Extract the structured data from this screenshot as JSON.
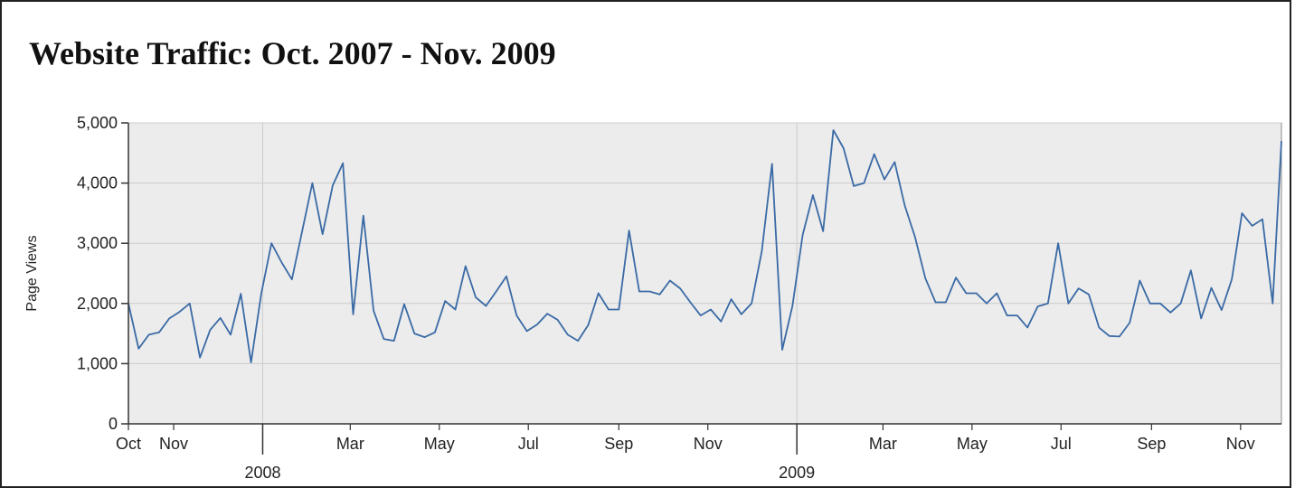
{
  "chart_data": {
    "type": "line",
    "title": "Website Traffic: Oct. 2007 - Nov. 2009",
    "ylabel": "Page Views",
    "xlabel": "",
    "ylim": [
      0,
      5000
    ],
    "yticks": [
      {
        "value": 0,
        "label": "0"
      },
      {
        "value": 1000,
        "label": "1,000"
      },
      {
        "value": 2000,
        "label": "2,000"
      },
      {
        "value": 3000,
        "label": "3,000"
      },
      {
        "value": 4000,
        "label": "4,000"
      },
      {
        "value": 5000,
        "label": "5,000"
      }
    ],
    "xlim": [
      "2007-10-01",
      "2009-11-29"
    ],
    "xticks": [
      {
        "date": "2007-10-01",
        "label": "Oct"
      },
      {
        "date": "2007-11-01",
        "label": "Nov"
      },
      {
        "date": "2008-03-01",
        "label": "Mar"
      },
      {
        "date": "2008-05-01",
        "label": "May"
      },
      {
        "date": "2008-07-01",
        "label": "Jul"
      },
      {
        "date": "2008-09-01",
        "label": "Sep"
      },
      {
        "date": "2008-11-01",
        "label": "Nov"
      },
      {
        "date": "2009-03-01",
        "label": "Mar"
      },
      {
        "date": "2009-05-01",
        "label": "May"
      },
      {
        "date": "2009-07-01",
        "label": "Jul"
      },
      {
        "date": "2009-09-01",
        "label": "Sep"
      },
      {
        "date": "2009-11-01",
        "label": "Nov"
      }
    ],
    "year_ticks": [
      {
        "date": "2008-01-01",
        "label": "2008"
      },
      {
        "date": "2009-01-01",
        "label": "2009"
      }
    ],
    "grid": true,
    "legend": "none",
    "colors": {
      "line": "#3a6aa5",
      "plot_bg": "#ececec",
      "grid": "#cccccc"
    },
    "series": [
      {
        "x": [
          "2007-10-01",
          "2007-10-08",
          "2007-10-15",
          "2007-10-22",
          "2007-10-29",
          "2007-11-05",
          "2007-11-12",
          "2007-11-19",
          "2007-11-26",
          "2007-12-03",
          "2007-12-10",
          "2007-12-17",
          "2007-12-24",
          "2007-12-31",
          "2008-01-07",
          "2008-01-14",
          "2008-01-21",
          "2008-01-28",
          "2008-02-04",
          "2008-02-11",
          "2008-02-18",
          "2008-02-25",
          "2008-03-03",
          "2008-03-10",
          "2008-03-17",
          "2008-03-24",
          "2008-03-31",
          "2008-04-07",
          "2008-04-14",
          "2008-04-21",
          "2008-04-28",
          "2008-05-05",
          "2008-05-12",
          "2008-05-19",
          "2008-05-26",
          "2008-06-02",
          "2008-06-09",
          "2008-06-16",
          "2008-06-23",
          "2008-06-30",
          "2008-07-07",
          "2008-07-14",
          "2008-07-21",
          "2008-07-28",
          "2008-08-04",
          "2008-08-11",
          "2008-08-18",
          "2008-08-25",
          "2008-09-01",
          "2008-09-08",
          "2008-09-15",
          "2008-09-22",
          "2008-09-29",
          "2008-10-06",
          "2008-10-13",
          "2008-10-20",
          "2008-10-27",
          "2008-11-03",
          "2008-11-10",
          "2008-11-17",
          "2008-11-24",
          "2008-12-01",
          "2008-12-08",
          "2008-12-15",
          "2008-12-22",
          "2008-12-29",
          "2009-01-05",
          "2009-01-12",
          "2009-01-19",
          "2009-01-26",
          "2009-02-02",
          "2009-02-09",
          "2009-02-16",
          "2009-02-23",
          "2009-03-02",
          "2009-03-09",
          "2009-03-16",
          "2009-03-23",
          "2009-03-30",
          "2009-04-06",
          "2009-04-13",
          "2009-04-20",
          "2009-04-27",
          "2009-05-04",
          "2009-05-11",
          "2009-05-18",
          "2009-05-25",
          "2009-06-01",
          "2009-06-08",
          "2009-06-15",
          "2009-06-22",
          "2009-06-29",
          "2009-07-06",
          "2009-07-13",
          "2009-07-20",
          "2009-07-27",
          "2009-08-03",
          "2009-08-10",
          "2009-08-17",
          "2009-08-24",
          "2009-08-31",
          "2009-09-07",
          "2009-09-14",
          "2009-09-21",
          "2009-09-28",
          "2009-10-05",
          "2009-10-12",
          "2009-10-19",
          "2009-10-26",
          "2009-11-02",
          "2009-11-09",
          "2009-11-16",
          "2009-11-23",
          "2009-11-29"
        ],
        "values": [
          2000,
          1250,
          1480,
          1520,
          1750,
          1860,
          2000,
          1100,
          1560,
          1760,
          1480,
          2160,
          1020,
          2160,
          3000,
          2680,
          2400,
          3200,
          4000,
          3150,
          3960,
          4330,
          1820,
          3460,
          1880,
          1410,
          1380,
          1990,
          1500,
          1440,
          1520,
          2040,
          1900,
          2620,
          2100,
          1960,
          2200,
          2450,
          1800,
          1540,
          1650,
          1830,
          1730,
          1480,
          1380,
          1640,
          2170,
          1900,
          1900,
          3210,
          2200,
          2200,
          2150,
          2380,
          2250,
          2020,
          1800,
          1900,
          1700,
          2070,
          1820,
          2000,
          2870,
          4320,
          1230,
          1960,
          3140,
          3800,
          3200,
          4880,
          4580,
          3950,
          4000,
          4480,
          4060,
          4350,
          3620,
          3100,
          2420,
          2020,
          2020,
          2430,
          2170,
          2170,
          2000,
          2170,
          1800,
          1800,
          1600,
          1950,
          2000,
          3000,
          2000,
          2250,
          2150,
          1600,
          1460,
          1450,
          1680,
          2380,
          2000,
          2000,
          1850,
          2000,
          2550,
          1750,
          2260,
          1890,
          2400,
          3500,
          3290,
          3400,
          2000,
          4700
        ]
      }
    ]
  }
}
